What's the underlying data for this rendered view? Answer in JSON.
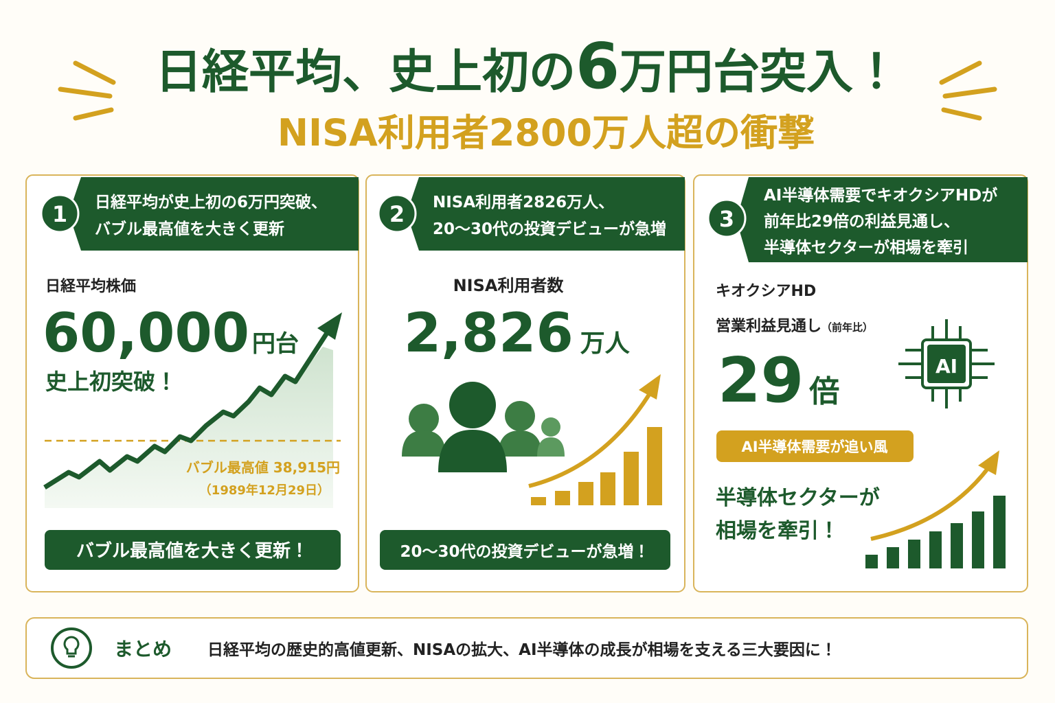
{
  "header": {
    "title_parts": [
      "日経平均、史上初の",
      "6",
      "万円台突入！"
    ],
    "subtitle": "NISA利用者2800万人超の衝撃"
  },
  "cards": [
    {
      "number": "1",
      "heading": [
        "日経平均が史上初の6万円突破、",
        "バブル最高値を大きく更新"
      ],
      "label": "日経平均株価",
      "figure": "60,000",
      "unit": "円台",
      "sub": "史上初突破！",
      "reference": "バブル最高値 38,915円",
      "reference_date": "（1989年12月29日）",
      "footer": "バブル最高値を大きく更新！"
    },
    {
      "number": "2",
      "heading": [
        "NISA利用者2826万人、",
        "20〜30代の投資デビューが急増"
      ],
      "label": "NISA利用者数",
      "figure": "2,826",
      "unit": "万人",
      "footer": "20〜30代の投資デビューが急増！"
    },
    {
      "number": "3",
      "heading": [
        "AI半導体需要でキオクシアHDが",
        "前年比29倍の利益見通し、",
        "半導体セクターが相場を牽引"
      ],
      "label": "キオクシアHD",
      "sublabel": "営業利益見通し",
      "sublabel_note": "（前年比）",
      "figure": "29",
      "unit": "倍",
      "icon_text": "AI",
      "badge": "AI半導体需要が追い風",
      "caption": [
        "半導体セクターが",
        "相場を牽引！"
      ]
    }
  ],
  "summary": {
    "label": "まとめ",
    "text": "日経平均の歴史的高値更新、NISAの拡大、AI半導体の成長が相場を支える三大要因に！"
  }
}
